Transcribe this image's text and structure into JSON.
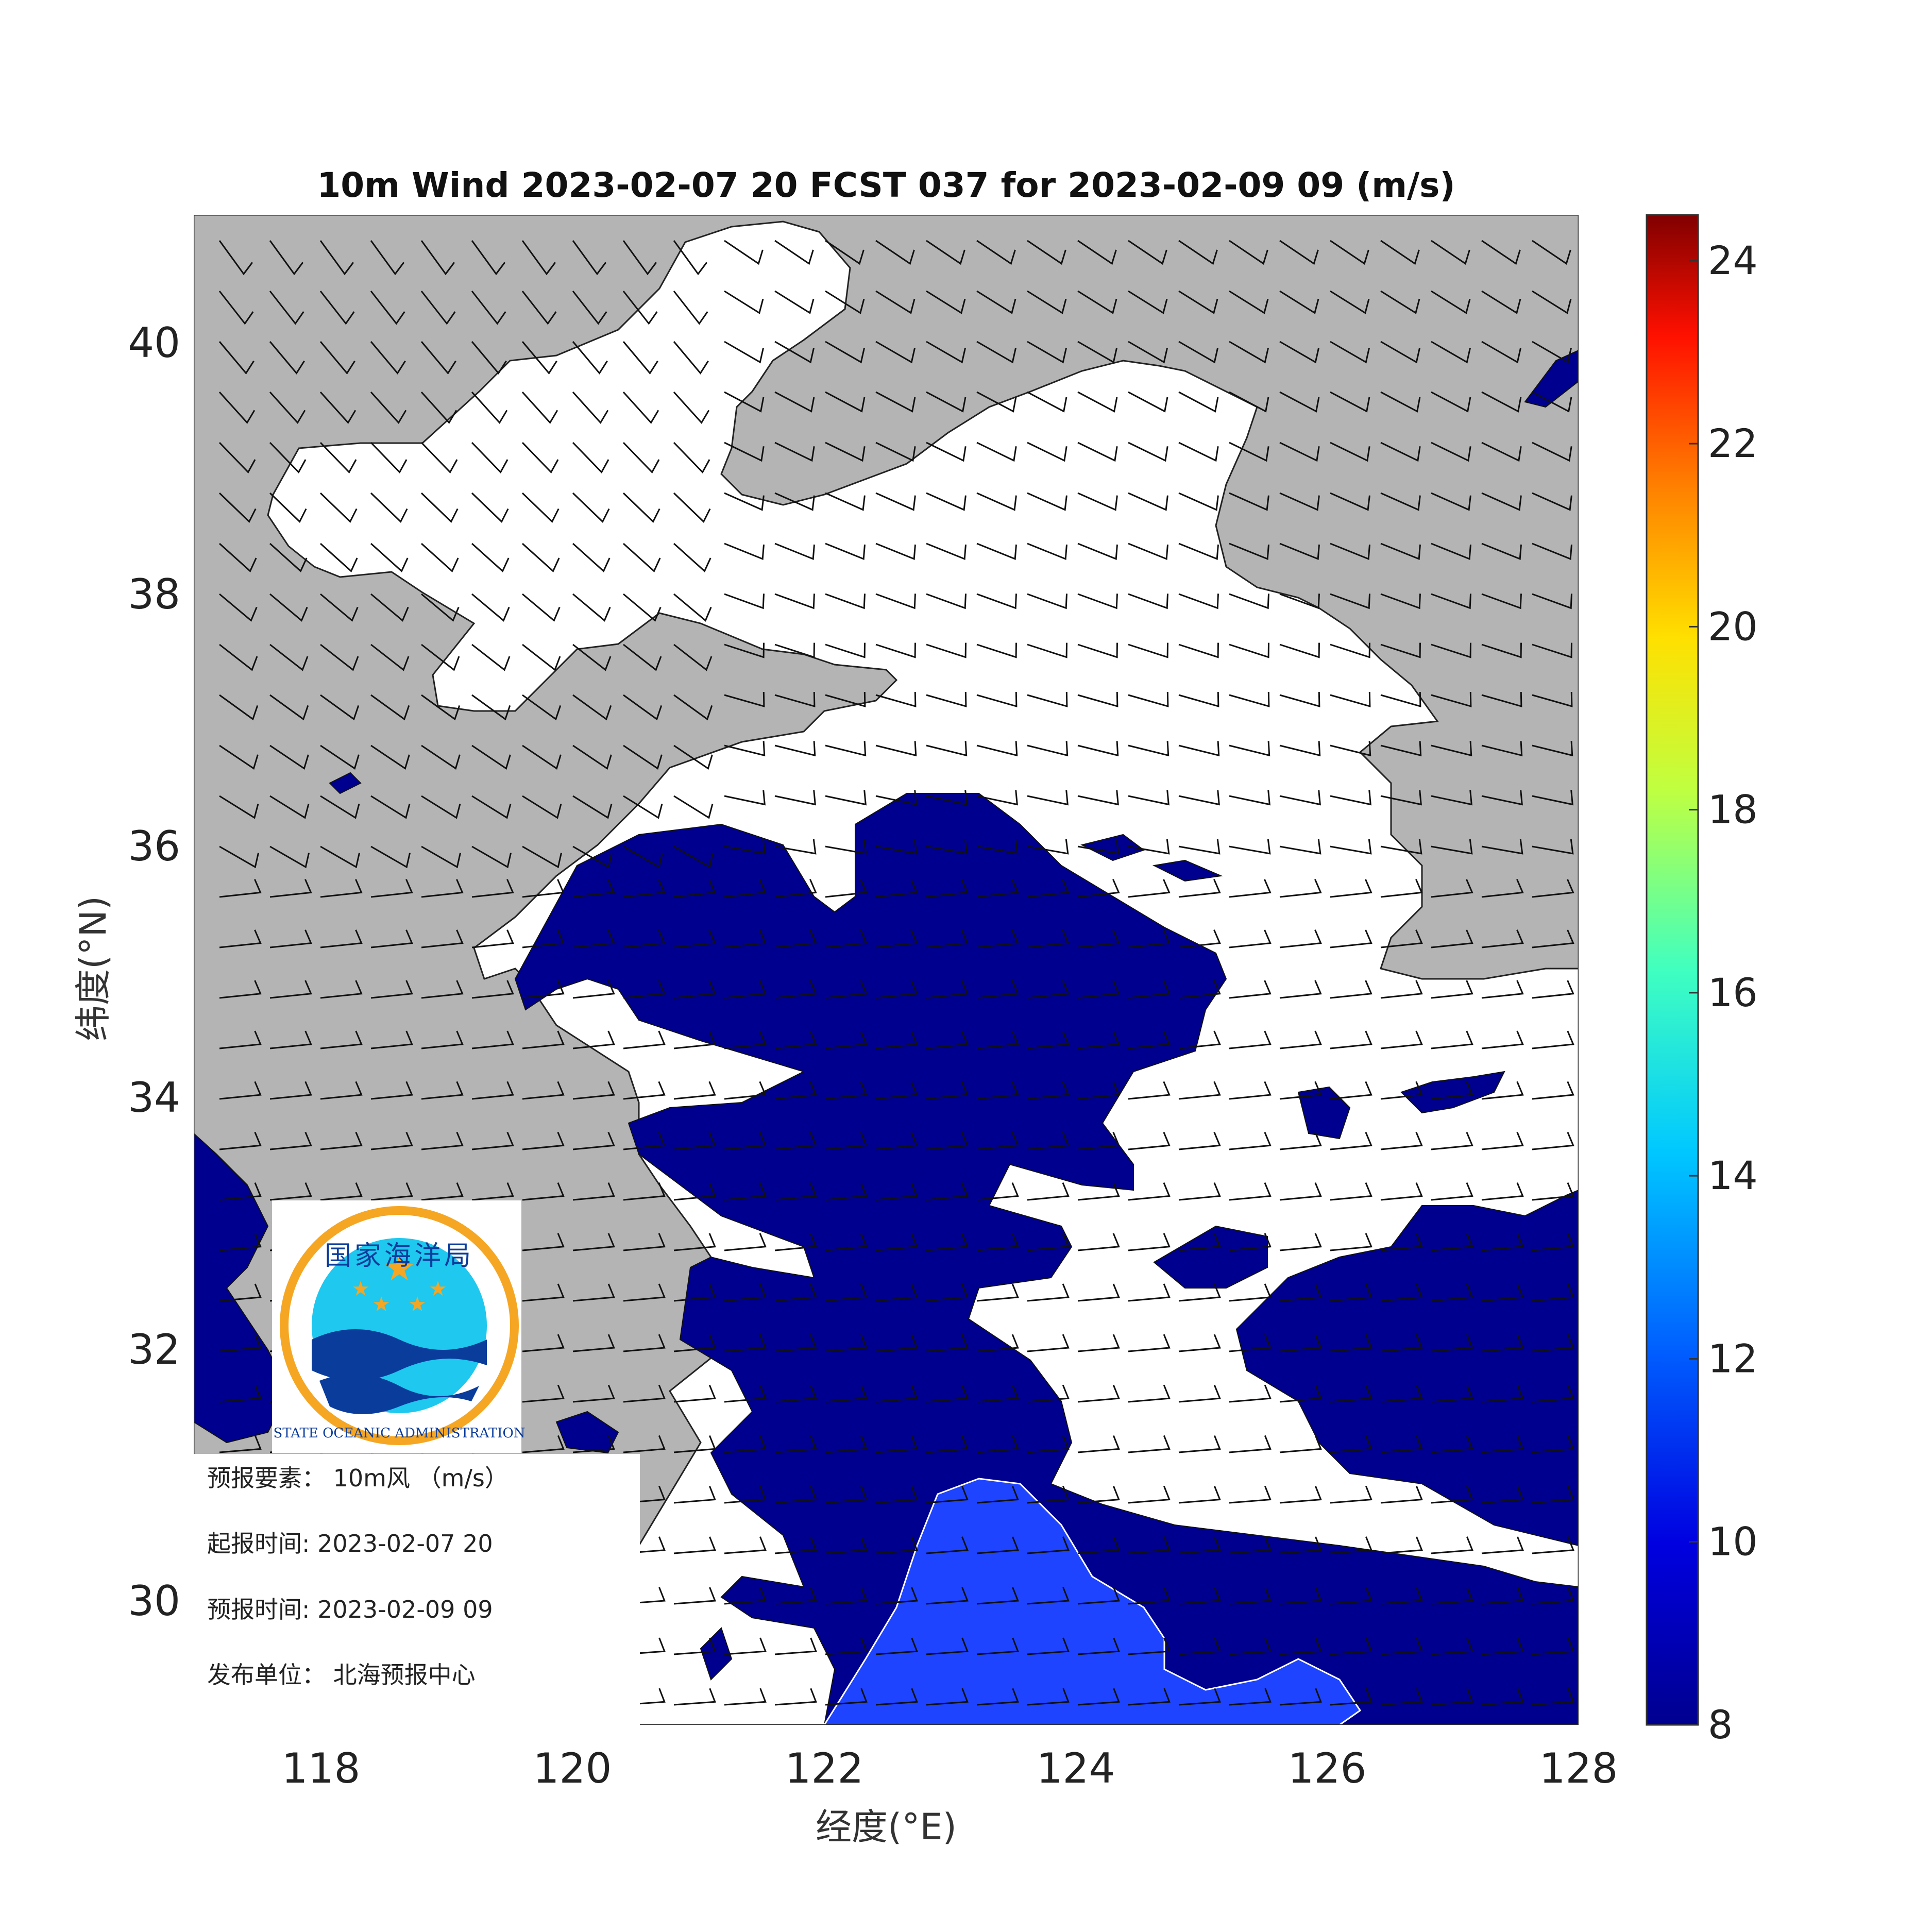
{
  "title": "10m Wind 2023-02-07 20 FCST 037 for 2023-02-09 09 (m/s)",
  "xlabel": "经度(°E)",
  "ylabel": "纬度(°N)",
  "map": {
    "lon_range": [
      117,
      128
    ],
    "lat_range": [
      29,
      41
    ],
    "x_ticks": [
      "118",
      "120",
      "122",
      "124",
      "126",
      "128"
    ],
    "y_ticks": [
      "30",
      "32",
      "34",
      "36",
      "38",
      "40"
    ],
    "land_color": "#b4b4b4",
    "calm_sea_color": "#ffffff"
  },
  "colorbar": {
    "ticks": [
      "8",
      "10",
      "12",
      "14",
      "16",
      "18",
      "20",
      "22",
      "24"
    ],
    "range": [
      8,
      24.5
    ],
    "colormap": "jet",
    "colors": {
      "v8": "#00008f",
      "v10": "#1030ff",
      "v14": "#10e8f0",
      "v18": "#ffff20",
      "v22": "#ff1000",
      "v24": "#800000"
    }
  },
  "wind_zones": [
    {
      "speed_class": "8-9 m/s",
      "color": "#00008f"
    },
    {
      "speed_class": "9-10 m/s",
      "color": "#1e44ff"
    }
  ],
  "logo": {
    "name_cn": "国家海洋局",
    "name_en": "STATE OCEANIC ADMINISTRATION"
  },
  "info": {
    "element": "预报要素：  10m风  （m/s）",
    "issue_time": "起报时间: 2023-02-07 20",
    "valid_time": "预报时间: 2023-02-09 09",
    "publisher": "发布单位：  北海预报中心"
  }
}
